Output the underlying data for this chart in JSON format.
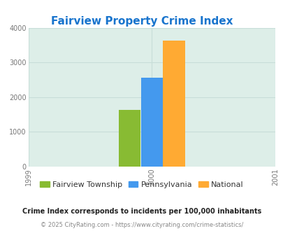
{
  "title": "Fairview Property Crime Index",
  "title_color": "#1874CD",
  "bars": [
    {
      "label": "Fairview Township",
      "value": 1620,
      "color": "#88bb33"
    },
    {
      "label": "Pennsylvania",
      "value": 2560,
      "color": "#4499ee"
    },
    {
      "label": "National",
      "value": 3620,
      "color": "#ffaa33"
    }
  ],
  "bar_x_center": 2000,
  "bar_width": 0.18,
  "xlim": [
    1999,
    2001
  ],
  "ylim": [
    0,
    4000
  ],
  "xticks": [
    1999,
    2000,
    2001
  ],
  "yticks": [
    0,
    1000,
    2000,
    3000,
    4000
  ],
  "plot_bg_color": "#ddeee8",
  "fig_bg_color": "#ffffff",
  "grid_color": "#c8ddd8",
  "footnote1": "Crime Index corresponds to incidents per 100,000 inhabitants",
  "footnote2": "© 2025 CityRating.com - https://www.cityrating.com/crime-statistics/",
  "footnote1_color": "#222222",
  "footnote2_color": "#888888",
  "title_fontsize": 11,
  "legend_fontsize": 8,
  "tick_fontsize": 7,
  "footnote1_fontsize": 7,
  "footnote2_fontsize": 6
}
